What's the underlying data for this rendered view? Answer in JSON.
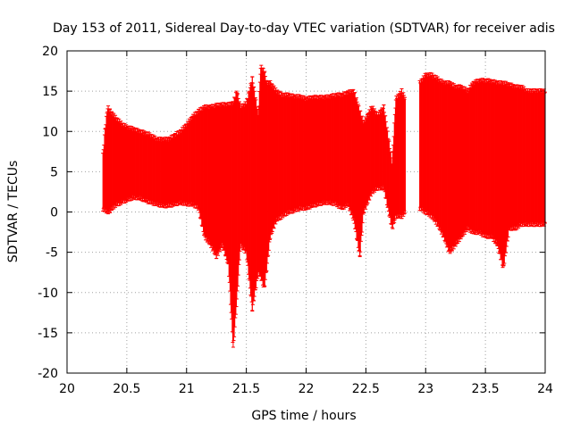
{
  "chart_data": {
    "type": "errorbar",
    "title": "Day 153 of 2011, Sidereal Day-to-day VTEC variation (SDTVAR) for receiver adis",
    "xlabel": "GPS time / hours",
    "ylabel": "SDTVAR / TECUs",
    "xlim": [
      20,
      24
    ],
    "ylim": [
      -20,
      20
    ],
    "xticks": [
      20,
      20.5,
      21,
      21.5,
      22,
      22.5,
      23,
      23.5,
      24
    ],
    "yticks": [
      -20,
      -15,
      -10,
      -5,
      0,
      5,
      10,
      15,
      20
    ],
    "xtick_labels": [
      "20",
      "20.5",
      "21",
      "21.5",
      "22",
      "22.5",
      "23",
      "23.5",
      "24"
    ],
    "ytick_labels": [
      "-20",
      "-15",
      "-10",
      "-5",
      "0",
      "5",
      "10",
      "15",
      "20"
    ],
    "grid": true,
    "series_color": "#ff0000",
    "series": [
      {
        "points": [
          {
            "x": 20.3,
            "low": 0.4,
            "high": 7.0
          },
          {
            "x": 20.32,
            "low": 0.2,
            "high": 10.5
          },
          {
            "x": 20.34,
            "low": 0.0,
            "high": 13.0
          },
          {
            "x": 20.36,
            "low": 0.2,
            "high": 12.5
          },
          {
            "x": 20.4,
            "low": 0.8,
            "high": 11.8
          },
          {
            "x": 20.45,
            "low": 1.2,
            "high": 11.0
          },
          {
            "x": 20.5,
            "low": 1.5,
            "high": 10.5
          },
          {
            "x": 20.55,
            "low": 1.8,
            "high": 10.3
          },
          {
            "x": 20.6,
            "low": 1.8,
            "high": 10.0
          },
          {
            "x": 20.65,
            "low": 1.5,
            "high": 9.8
          },
          {
            "x": 20.7,
            "low": 1.2,
            "high": 9.5
          },
          {
            "x": 20.75,
            "low": 1.0,
            "high": 9.0
          },
          {
            "x": 20.8,
            "low": 0.8,
            "high": 9.0
          },
          {
            "x": 20.85,
            "low": 0.8,
            "high": 9.0
          },
          {
            "x": 20.9,
            "low": 1.0,
            "high": 9.5
          },
          {
            "x": 20.95,
            "low": 1.2,
            "high": 10.0
          },
          {
            "x": 21.0,
            "low": 1.0,
            "high": 10.8
          },
          {
            "x": 21.05,
            "low": 1.0,
            "high": 11.8
          },
          {
            "x": 21.1,
            "low": 0.5,
            "high": 12.5
          },
          {
            "x": 21.15,
            "low": -3.0,
            "high": 13.0
          },
          {
            "x": 21.2,
            "low": -4.0,
            "high": 13.0
          },
          {
            "x": 21.25,
            "low": -5.5,
            "high": 13.2
          },
          {
            "x": 21.3,
            "low": -4.0,
            "high": 13.3
          },
          {
            "x": 21.35,
            "low": -6.5,
            "high": 13.3
          },
          {
            "x": 21.39,
            "low": -17.0,
            "high": 13.5
          },
          {
            "x": 21.42,
            "low": -11.0,
            "high": 15.0
          },
          {
            "x": 21.45,
            "low": -4.0,
            "high": 13.0
          },
          {
            "x": 21.5,
            "low": -5.0,
            "high": 13.5
          },
          {
            "x": 21.55,
            "low": -12.0,
            "high": 16.5
          },
          {
            "x": 21.6,
            "low": -7.5,
            "high": 12.0
          },
          {
            "x": 21.62,
            "low": -8.0,
            "high": 18.0
          },
          {
            "x": 21.65,
            "low": -9.5,
            "high": 17.5
          },
          {
            "x": 21.67,
            "low": -7.0,
            "high": 16.0
          },
          {
            "x": 21.7,
            "low": -3.0,
            "high": 16.0
          },
          {
            "x": 21.75,
            "low": -1.0,
            "high": 15.0
          },
          {
            "x": 21.8,
            "low": -0.5,
            "high": 14.5
          },
          {
            "x": 21.85,
            "low": 0.0,
            "high": 14.5
          },
          {
            "x": 21.9,
            "low": 0.2,
            "high": 14.3
          },
          {
            "x": 21.95,
            "low": 0.5,
            "high": 14.3
          },
          {
            "x": 22.0,
            "low": 0.5,
            "high": 14.0
          },
          {
            "x": 22.05,
            "low": 0.8,
            "high": 14.2
          },
          {
            "x": 22.1,
            "low": 1.0,
            "high": 14.2
          },
          {
            "x": 22.15,
            "low": 1.2,
            "high": 14.2
          },
          {
            "x": 22.2,
            "low": 1.2,
            "high": 14.3
          },
          {
            "x": 22.25,
            "low": 1.0,
            "high": 14.5
          },
          {
            "x": 22.3,
            "low": 0.5,
            "high": 14.5
          },
          {
            "x": 22.35,
            "low": 1.0,
            "high": 14.8
          },
          {
            "x": 22.4,
            "low": -1.0,
            "high": 15.0
          },
          {
            "x": 22.45,
            "low": -5.5,
            "high": 12.5
          },
          {
            "x": 22.48,
            "low": 0.0,
            "high": 11.0
          },
          {
            "x": 22.55,
            "low": 2.5,
            "high": 13.0
          },
          {
            "x": 22.6,
            "low": 3.0,
            "high": 12.0
          },
          {
            "x": 22.65,
            "low": 3.0,
            "high": 13.0
          },
          {
            "x": 22.72,
            "low": -2.0,
            "high": 6.0
          },
          {
            "x": 22.75,
            "low": -0.5,
            "high": 14.0
          },
          {
            "x": 22.8,
            "low": -0.5,
            "high": 15.0
          },
          {
            "x": 22.83,
            "low": 0.0,
            "high": 14.0
          },
          {
            "x": 22.95,
            "low": 0.5,
            "high": 16.0
          },
          {
            "x": 23.0,
            "low": 0.0,
            "high": 17.0
          },
          {
            "x": 23.05,
            "low": -0.5,
            "high": 17.0
          },
          {
            "x": 23.1,
            "low": -1.5,
            "high": 16.5
          },
          {
            "x": 23.15,
            "low": -3.0,
            "high": 16.0
          },
          {
            "x": 23.2,
            "low": -5.0,
            "high": 16.0
          },
          {
            "x": 23.25,
            "low": -4.0,
            "high": 15.5
          },
          {
            "x": 23.3,
            "low": -3.0,
            "high": 15.5
          },
          {
            "x": 23.35,
            "low": -2.0,
            "high": 15.0
          },
          {
            "x": 23.4,
            "low": -2.5,
            "high": 16.0
          },
          {
            "x": 23.45,
            "low": -2.5,
            "high": 16.3
          },
          {
            "x": 23.5,
            "low": -3.0,
            "high": 16.3
          },
          {
            "x": 23.55,
            "low": -3.0,
            "high": 16.2
          },
          {
            "x": 23.6,
            "low": -4.0,
            "high": 16.0
          },
          {
            "x": 23.65,
            "low": -7.0,
            "high": 16.0
          },
          {
            "x": 23.7,
            "low": -2.0,
            "high": 15.8
          },
          {
            "x": 23.75,
            "low": -2.0,
            "high": 15.5
          },
          {
            "x": 23.8,
            "low": -1.5,
            "high": 15.5
          },
          {
            "x": 23.85,
            "low": -1.5,
            "high": 15.0
          },
          {
            "x": 23.9,
            "low": -1.5,
            "high": 15.0
          },
          {
            "x": 23.95,
            "low": -1.5,
            "high": 15.0
          },
          {
            "x": 24.0,
            "low": -1.5,
            "high": 15.0
          }
        ]
      }
    ]
  }
}
